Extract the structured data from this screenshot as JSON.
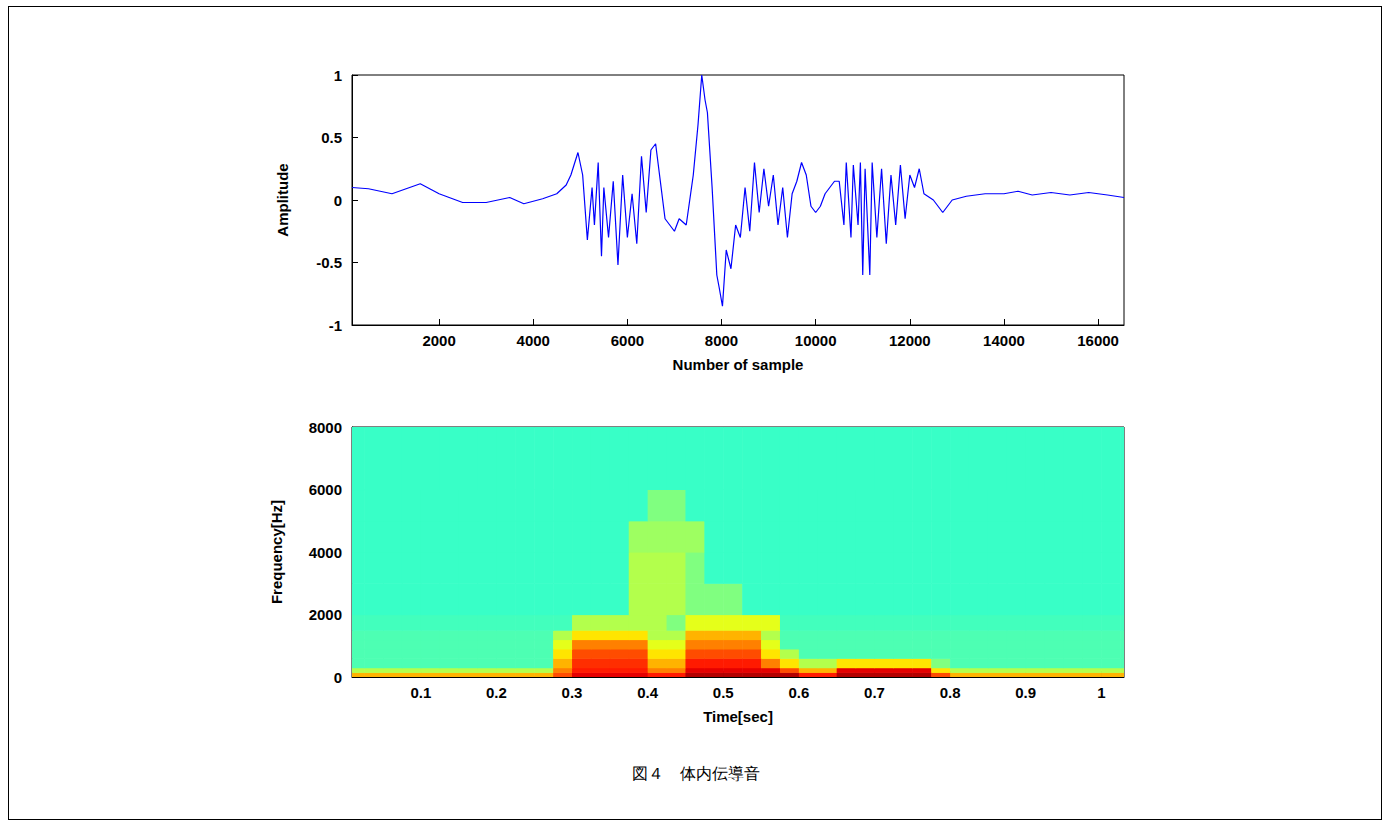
{
  "caption": "図４　体内伝導音",
  "chart_data": [
    {
      "type": "line",
      "x_label": "Number of sample",
      "y_label": "Amplitude",
      "color": "#0000ff",
      "grid": false,
      "xlim": [
        150,
        16550
      ],
      "xticks": [
        2000,
        4000,
        6000,
        8000,
        10000,
        12000,
        14000,
        16000
      ],
      "ylim": [
        -1,
        1
      ],
      "yticks": [
        -1,
        -0.5,
        0,
        0.5,
        1
      ],
      "x": [
        150,
        500,
        1000,
        1600,
        2000,
        2500,
        3000,
        3500,
        3800,
        4200,
        4500,
        4700,
        4800,
        4950,
        5050,
        5150,
        5250,
        5300,
        5380,
        5450,
        5500,
        5600,
        5700,
        5800,
        5900,
        6000,
        6100,
        6200,
        6300,
        6400,
        6500,
        6600,
        6700,
        6800,
        6900,
        7000,
        7100,
        7250,
        7400,
        7500,
        7580,
        7650,
        7700,
        7800,
        7900,
        7950,
        8020,
        8100,
        8200,
        8300,
        8400,
        8500,
        8600,
        8700,
        8800,
        8900,
        9000,
        9100,
        9200,
        9300,
        9400,
        9500,
        9600,
        9700,
        9800,
        9900,
        10000,
        10100,
        10200,
        10300,
        10400,
        10500,
        10600,
        10650,
        10750,
        10800,
        10900,
        10950,
        11000,
        11050,
        11150,
        11200,
        11300,
        11400,
        11500,
        11600,
        11700,
        11800,
        11900,
        12000,
        12100,
        12200,
        12300,
        12500,
        12700,
        12900,
        13200,
        13600,
        14000,
        14300,
        14600,
        15000,
        15400,
        15800,
        16200,
        16550
      ],
      "values": [
        0.1,
        0.09,
        0.05,
        0.13,
        0.05,
        -0.02,
        -0.02,
        0.02,
        -0.03,
        0.01,
        0.05,
        0.12,
        0.2,
        0.38,
        0.2,
        -0.32,
        0.1,
        -0.2,
        0.3,
        -0.45,
        0.1,
        -0.3,
        0.15,
        -0.52,
        0.2,
        -0.3,
        0.05,
        -0.35,
        0.35,
        -0.1,
        0.4,
        0.45,
        0.15,
        -0.15,
        -0.2,
        -0.25,
        -0.15,
        -0.2,
        0.2,
        0.6,
        1,
        0.8,
        0.7,
        0.1,
        -0.6,
        -0.7,
        -0.85,
        -0.4,
        -0.55,
        -0.2,
        -0.3,
        0.1,
        -0.25,
        0.3,
        -0.1,
        0.25,
        -0.05,
        0.2,
        -0.2,
        0.1,
        -0.3,
        0.05,
        0.15,
        0.3,
        0.2,
        -0.05,
        -0.1,
        -0.05,
        0.05,
        0.1,
        0.15,
        0.15,
        -0.2,
        0.3,
        -0.3,
        0.28,
        -0.2,
        0.3,
        -0.6,
        0.25,
        -0.6,
        0.3,
        -0.3,
        0.25,
        -0.35,
        0.2,
        -0.2,
        0.28,
        -0.15,
        0.2,
        0.1,
        0.25,
        0.05,
        0,
        -0.1,
        0,
        0.03,
        0.05,
        0.05,
        0.07,
        0.04,
        0.06,
        0.04,
        0.06,
        0.04,
        0.02
      ]
    },
    {
      "type": "heatmap",
      "x_label": "Time[sec]",
      "y_label": "Frequency[Hz]",
      "grid": false,
      "xlim": [
        0.009,
        1.03
      ],
      "xticks": [
        0.1,
        0.2,
        0.3,
        0.4,
        0.5,
        0.6,
        0.7,
        0.8,
        0.9,
        1
      ],
      "ylim": [
        0,
        8000
      ],
      "yticks": [
        0,
        2000,
        4000,
        6000,
        8000
      ],
      "zlim": [
        0,
        10
      ],
      "t_edges": [
        0,
        0.025,
        0.05,
        0.075,
        0.1,
        0.125,
        0.15,
        0.175,
        0.2,
        0.225,
        0.25,
        0.275,
        0.3,
        0.325,
        0.35,
        0.375,
        0.4,
        0.425,
        0.45,
        0.475,
        0.5,
        0.525,
        0.55,
        0.575,
        0.6,
        0.625,
        0.65,
        0.675,
        0.7,
        0.725,
        0.75,
        0.775,
        0.8,
        0.825,
        0.85,
        0.875,
        0.9,
        0.925,
        0.95,
        0.975,
        1,
        1.025,
        1.05
      ],
      "f_edges": [
        0,
        150,
        300,
        600,
        900,
        1200,
        1500,
        2000,
        3000,
        4000,
        5000,
        6000,
        8000
      ],
      "cells": [
        [
          7,
          7,
          7,
          7,
          7,
          7,
          7,
          7,
          7,
          7,
          7,
          8,
          9,
          9,
          9,
          9,
          8.5,
          8.5,
          9.5,
          9.5,
          9.5,
          9.5,
          9.5,
          9.5,
          8.5,
          8.5,
          9.5,
          9.5,
          9.5,
          9.5,
          9.5,
          8,
          7,
          7,
          7,
          7,
          7,
          7,
          7,
          7,
          7,
          7
        ],
        [
          5.5,
          5.5,
          5.5,
          5.5,
          5.5,
          5.5,
          5.5,
          5.5,
          5.5,
          5.5,
          5.5,
          7.5,
          8.5,
          8.5,
          8.5,
          8.5,
          7.5,
          7.5,
          9,
          9,
          9,
          9,
          9,
          8,
          7,
          7,
          9,
          9,
          9,
          9,
          9,
          6.5,
          5.5,
          5.5,
          5.5,
          5.5,
          5.5,
          5.5,
          5.5,
          5.5,
          5.5,
          5.5
        ],
        [
          4.5,
          4.5,
          4.5,
          4.5,
          4.5,
          4.5,
          4.5,
          4.5,
          4.5,
          4.5,
          4.5,
          7,
          8.3,
          8.3,
          8.3,
          8.3,
          7,
          7,
          8.5,
          8.5,
          8.5,
          8.5,
          7.5,
          6.5,
          5.5,
          5.5,
          6.5,
          6.5,
          6.5,
          6.5,
          6.5,
          5,
          4.5,
          4.5,
          4.5,
          4.5,
          4.5,
          4.5,
          4.5,
          4.5,
          4.5,
          4.5
        ],
        [
          4.5,
          4.5,
          4.5,
          4.5,
          4.5,
          4.5,
          4.5,
          4.5,
          4.5,
          4.5,
          4.5,
          6.5,
          8,
          8,
          8,
          8,
          6.5,
          6.5,
          8,
          8,
          8,
          8,
          6.5,
          5.5,
          4.5,
          4.5,
          4.5,
          4.5,
          4.5,
          4.5,
          4.5,
          4.5,
          4.5,
          4.5,
          4.5,
          4.5,
          4.5,
          4.5,
          4.5,
          4.5,
          4.5,
          4.5
        ],
        [
          4.5,
          4.5,
          4.5,
          4.5,
          4.5,
          4.5,
          4.5,
          4.5,
          4.5,
          4.5,
          4.5,
          6,
          7.5,
          7.5,
          7.5,
          7.5,
          6,
          6,
          7.5,
          7.5,
          7.5,
          7.5,
          6,
          4.5,
          4.5,
          4.5,
          4.5,
          4.5,
          4.5,
          4.5,
          4.5,
          4.5,
          4.5,
          4.5,
          4.5,
          4.5,
          4.5,
          4.5,
          4.5,
          4.5,
          4.5,
          4.5
        ],
        [
          4.5,
          4.5,
          4.5,
          4.5,
          4.5,
          4.5,
          4.5,
          4.5,
          4.5,
          4.5,
          4.5,
          5.5,
          6.5,
          6.5,
          6.5,
          6.5,
          5.5,
          5.5,
          7,
          7,
          7,
          7,
          5.5,
          4.5,
          4.5,
          4.5,
          4.5,
          4.5,
          4.5,
          4.5,
          4.5,
          4.5,
          4.5,
          4.5,
          4.5,
          4.5,
          4.5,
          4.5,
          4.5,
          4.5,
          4.5,
          4.5
        ],
        [
          4.4,
          4.4,
          4.4,
          4.4,
          4.4,
          4.4,
          4.4,
          4.4,
          4.4,
          4.4,
          4.4,
          4.4,
          5.5,
          5.5,
          5.5,
          5.5,
          5.5,
          5,
          6,
          6,
          6,
          6,
          6,
          4.4,
          4.4,
          4.4,
          4.4,
          4.4,
          4.4,
          4.4,
          4.4,
          4.4,
          4.4,
          4.4,
          4.4,
          4.4,
          4.4,
          4.4,
          4.4,
          4.4,
          4.4,
          4.4
        ],
        [
          4.3,
          4.3,
          4.3,
          4.3,
          4.3,
          4.3,
          4.3,
          4.3,
          4.3,
          4.3,
          4.3,
          4.3,
          4.3,
          4.3,
          4.3,
          5.5,
          5.5,
          5.5,
          5,
          5,
          5,
          4.3,
          4.3,
          4.3,
          4.3,
          4.3,
          4.3,
          4.3,
          4.3,
          4.3,
          4.3,
          4.3,
          4.3,
          4.3,
          4.3,
          4.3,
          4.3,
          4.3,
          4.3,
          4.3,
          4.3,
          4.3
        ],
        [
          4.3,
          4.3,
          4.3,
          4.3,
          4.3,
          4.3,
          4.3,
          4.3,
          4.3,
          4.3,
          4.3,
          4.3,
          4.3,
          4.3,
          4.3,
          5.5,
          5.5,
          5.5,
          5,
          4.3,
          4.3,
          4.3,
          4.3,
          4.3,
          4.3,
          4.3,
          4.3,
          4.3,
          4.3,
          4.3,
          4.3,
          4.3,
          4.3,
          4.3,
          4.3,
          4.3,
          4.3,
          4.3,
          4.3,
          4.3,
          4.3,
          4.3
        ],
        [
          4.3,
          4.3,
          4.3,
          4.3,
          4.3,
          4.3,
          4.3,
          4.3,
          4.3,
          4.3,
          4.3,
          4.3,
          4.3,
          4.3,
          4.3,
          5.3,
          5.3,
          5.3,
          5.3,
          4.3,
          4.3,
          4.3,
          4.3,
          4.3,
          4.3,
          4.3,
          4.3,
          4.3,
          4.3,
          4.3,
          4.3,
          4.3,
          4.3,
          4.3,
          4.3,
          4.3,
          4.3,
          4.3,
          4.3,
          4.3,
          4.3,
          4.3
        ],
        [
          4.3,
          4.3,
          4.3,
          4.3,
          4.3,
          4.3,
          4.3,
          4.3,
          4.3,
          4.3,
          4.3,
          4.3,
          4.3,
          4.3,
          4.3,
          4.3,
          5,
          5,
          4.3,
          4.3,
          4.3,
          4.3,
          4.3,
          4.3,
          4.3,
          4.3,
          4.3,
          4.3,
          4.3,
          4.3,
          4.3,
          4.3,
          4.3,
          4.3,
          4.3,
          4.3,
          4.3,
          4.3,
          4.3,
          4.3,
          4.3,
          4.3
        ],
        [
          4.3,
          4.3,
          4.3,
          4.3,
          4.3,
          4.3,
          4.3,
          4.3,
          4.3,
          4.3,
          4.3,
          4.3,
          4.3,
          4.3,
          4.3,
          4.3,
          4.3,
          4.3,
          4.3,
          4.3,
          4.3,
          4.3,
          4.3,
          4.3,
          4.3,
          4.3,
          4.3,
          4.3,
          4.3,
          4.3,
          4.3,
          4.3,
          4.3,
          4.3,
          4.3,
          4.3,
          4.3,
          4.3,
          4.3,
          4.3,
          4.3,
          4.3
        ]
      ]
    }
  ]
}
